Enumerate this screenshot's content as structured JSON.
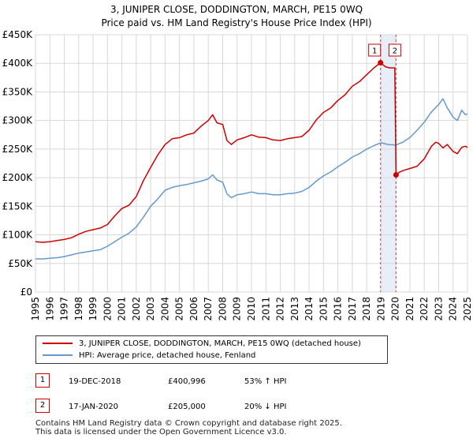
{
  "title_line1": "3, JUNIPER CLOSE, DODDINGTON, MARCH, PE15 0WQ",
  "title_line2": "Price paid vs. HM Land Registry's House Price Index (HPI)",
  "colors": {
    "red": "#cc0000",
    "blue": "#6699cc",
    "grid": "#d8d8d8",
    "band": "#e8eef8"
  },
  "legend": {
    "red_label": "3, JUNIPER CLOSE, DODDINGTON, MARCH, PE15 0WQ (detached house)",
    "blue_label": "HPI: Average price, detached house, Fenland"
  },
  "transactions": [
    {
      "num": "1",
      "date": "19-DEC-2018",
      "price": "£400,996",
      "hpi": "53% ↑ HPI"
    },
    {
      "num": "2",
      "date": "17-JAN-2020",
      "price": "£205,000",
      "hpi": "20% ↓ HPI"
    }
  ],
  "footer_line1": "Contains HM Land Registry data © Crown copyright and database right 2025.",
  "footer_line2": "This data is licensed under the Open Government Licence v3.0.",
  "chart_data": {
    "type": "line",
    "title": "3, JUNIPER CLOSE, DODDINGTON, MARCH, PE15 0WQ — Price paid vs. HM Land Registry's House Price Index (HPI)",
    "xlim": [
      1995,
      2025
    ],
    "ylim": [
      0,
      450000
    ],
    "x_ticks": [
      1995,
      1996,
      1997,
      1998,
      1999,
      2000,
      2001,
      2002,
      2003,
      2004,
      2005,
      2006,
      2007,
      2008,
      2009,
      2010,
      2011,
      2012,
      2013,
      2014,
      2015,
      2016,
      2017,
      2018,
      2019,
      2020,
      2021,
      2022,
      2023,
      2024,
      2025
    ],
    "y_ticks": [
      {
        "value": 0,
        "label": "£0"
      },
      {
        "value": 50000,
        "label": "£50K"
      },
      {
        "value": 100000,
        "label": "£100K"
      },
      {
        "value": 150000,
        "label": "£150K"
      },
      {
        "value": 200000,
        "label": "£200K"
      },
      {
        "value": 250000,
        "label": "£250K"
      },
      {
        "value": 300000,
        "label": "£300K"
      },
      {
        "value": 350000,
        "label": "£350K"
      },
      {
        "value": 400000,
        "label": "£400K"
      },
      {
        "value": 450000,
        "label": "£450K"
      }
    ],
    "shaded_band": [
      2018.96,
      2020.04
    ],
    "markers": [
      {
        "label": "1",
        "x": 2018.96,
        "y": 400996
      },
      {
        "label": "2",
        "x": 2020.04,
        "y": 205000
      }
    ],
    "series": [
      {
        "name": "3, JUNIPER CLOSE, DODDINGTON, MARCH, PE15 0WQ (detached house)",
        "color": "#cc0000",
        "x": [
          1995,
          1995.5,
          1996,
          1996.5,
          1997,
          1997.5,
          1998,
          1998.5,
          1999,
          1999.5,
          2000,
          2000.5,
          2001,
          2001.5,
          2002,
          2002.5,
          2003,
          2003.5,
          2004,
          2004.5,
          2005,
          2005.5,
          2006,
          2006.5,
          2007,
          2007.3,
          2007.6,
          2008,
          2008.3,
          2008.6,
          2009,
          2009.5,
          2010,
          2010.5,
          2011,
          2011.5,
          2012,
          2012.5,
          2013,
          2013.5,
          2014,
          2014.5,
          2015,
          2015.5,
          2016,
          2016.5,
          2017,
          2017.5,
          2018,
          2018.5,
          2018.96,
          2019.3,
          2019.6,
          2019.95,
          2020.04,
          2020.3,
          2020.6,
          2021,
          2021.5,
          2022,
          2022.5,
          2022.8,
          2023,
          2023.3,
          2023.6,
          2024,
          2024.3,
          2024.6,
          2024.85,
          2025
        ],
        "y": [
          88000,
          87000,
          88000,
          90000,
          92000,
          95000,
          101000,
          106000,
          109000,
          112000,
          118000,
          133000,
          146000,
          152000,
          167000,
          195000,
          218000,
          240000,
          258000,
          268000,
          270000,
          275000,
          278000,
          290000,
          300000,
          310000,
          296000,
          293000,
          265000,
          258000,
          266000,
          270000,
          275000,
          271000,
          270000,
          266000,
          265000,
          268000,
          270000,
          272000,
          283000,
          301000,
          314000,
          322000,
          335000,
          345000,
          360000,
          368000,
          380000,
          392000,
          400996,
          394000,
          392000,
          392000,
          205000,
          210000,
          213000,
          216000,
          220000,
          233000,
          255000,
          262000,
          260000,
          252000,
          258000,
          246000,
          242000,
          253000,
          255000,
          253000
        ]
      },
      {
        "name": "HPI: Average price, detached house, Fenland",
        "color": "#6699cc",
        "x": [
          1995,
          1995.5,
          1996,
          1996.5,
          1997,
          1997.5,
          1998,
          1998.5,
          1999,
          1999.5,
          2000,
          2000.5,
          2001,
          2001.5,
          2002,
          2002.5,
          2003,
          2003.5,
          2004,
          2004.5,
          2005,
          2005.5,
          2006,
          2006.5,
          2007,
          2007.3,
          2007.6,
          2008,
          2008.3,
          2008.6,
          2009,
          2009.5,
          2010,
          2010.5,
          2011,
          2011.5,
          2012,
          2012.5,
          2013,
          2013.5,
          2014,
          2014.5,
          2015,
          2015.5,
          2016,
          2016.5,
          2017,
          2017.5,
          2018,
          2018.5,
          2019,
          2019.5,
          2020,
          2020.5,
          2021,
          2021.5,
          2022,
          2022.5,
          2023,
          2023.3,
          2023.6,
          2024,
          2024.3,
          2024.6,
          2024.85,
          2025
        ],
        "y": [
          58000,
          58000,
          59000,
          60000,
          62000,
          65000,
          68000,
          70000,
          72000,
          74000,
          80000,
          88000,
          96000,
          103000,
          114000,
          131000,
          150000,
          163000,
          178000,
          183000,
          186000,
          188000,
          191000,
          194000,
          198000,
          205000,
          196000,
          192000,
          172000,
          165000,
          170000,
          172000,
          175000,
          172000,
          172000,
          170000,
          170000,
          172000,
          173000,
          176000,
          183000,
          194000,
          203000,
          210000,
          219000,
          227000,
          236000,
          242000,
          250000,
          256000,
          261000,
          258000,
          257000,
          262000,
          270000,
          283000,
          297000,
          315000,
          328000,
          338000,
          322000,
          306000,
          300000,
          318000,
          310000,
          312000
        ]
      }
    ]
  }
}
